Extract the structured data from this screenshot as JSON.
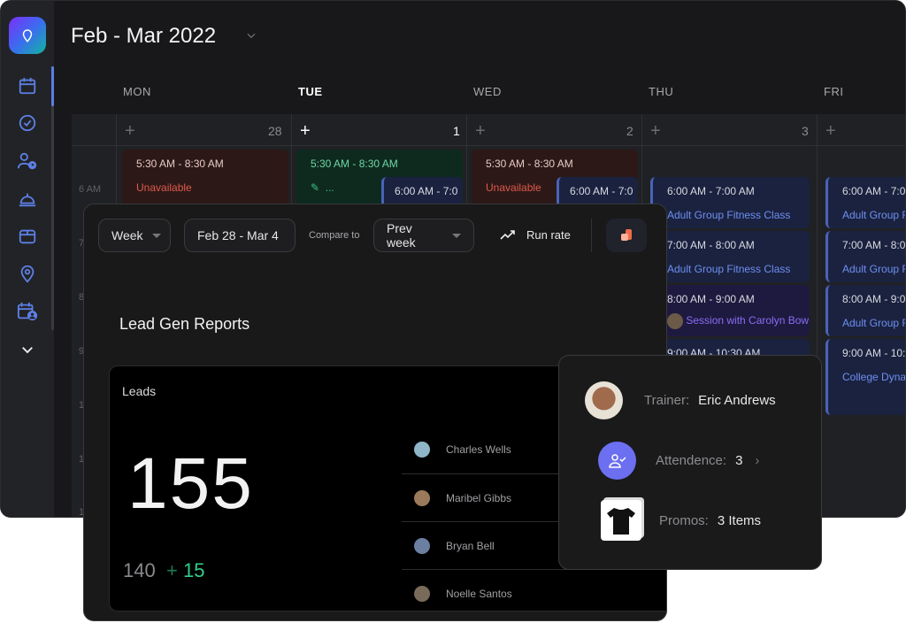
{
  "calendar": {
    "title": "Feb - Mar 2022",
    "days": [
      {
        "name": "MON",
        "date": "28"
      },
      {
        "name": "TUE",
        "date": "1"
      },
      {
        "name": "WED",
        "date": "2"
      },
      {
        "name": "THU",
        "date": "3"
      },
      {
        "name": "FRI",
        "date": ""
      }
    ],
    "time_labels": [
      "6 AM",
      "7",
      "8",
      "9",
      "1",
      "1",
      "1"
    ],
    "events": {
      "mon_unavail": {
        "time": "5:30 AM - 8:30 AM",
        "label": "Unavailable"
      },
      "tue_avail": {
        "time": "5:30 AM - 8:30 AM",
        "label": "..."
      },
      "tue_class": {
        "time": "6:00 AM - 7:0"
      },
      "wed_unavail": {
        "time": "5:30 AM - 8:30 AM",
        "label": "Unavailable"
      },
      "wed_class": {
        "time": "6:00 AM - 7:0"
      },
      "thu": [
        {
          "time": "6:00 AM - 7:00 AM",
          "label": "Adult Group Fitness Class"
        },
        {
          "time": "7:00 AM - 8:00 AM",
          "label": "Adult Group Fitness Class"
        },
        {
          "time": "8:00 AM - 9:00 AM",
          "label": "Session with Carolyn Bow"
        },
        {
          "time": "9:00 AM - 10:30 AM",
          "label": ""
        }
      ],
      "fri": [
        {
          "time": "6:00 AM - 7:0",
          "label": "Adult Group F"
        },
        {
          "time": "7:00 AM - 8:0",
          "label": "Adult Group F"
        },
        {
          "time": "8:00 AM - 9:0",
          "label": "Adult Group F"
        },
        {
          "time": "9:00 AM - 10:",
          "label": "College Dyna"
        }
      ]
    }
  },
  "reports": {
    "period": "Week",
    "range": "Feb 28 - Mar 4",
    "compare_label": "Compare to",
    "compare": "Prev week",
    "run_rate": "Run rate",
    "title": "Lead Gen Reports",
    "card": {
      "label": "Leads",
      "value": "155",
      "previous": "140",
      "delta_sign": "+",
      "delta": "15"
    },
    "leads": [
      "Charles Wells",
      "Maribel Gibbs",
      "Bryan Bell",
      "Noelle Santos"
    ]
  },
  "popover": {
    "trainer_label": "Trainer:",
    "trainer": "Eric Andrews",
    "attendance_label": "Attendence:",
    "attendance": "3",
    "promos_label": "Promos:",
    "promos": "3 Items"
  },
  "colors": {
    "accent": "#5d7fe6",
    "unavailable": "#e0594c",
    "available": "#3fbf84",
    "class": "#6f8ff0",
    "session": "#8a6df5",
    "delta": "#2fcf8a",
    "attendance_badge": "#6b6ff0"
  }
}
